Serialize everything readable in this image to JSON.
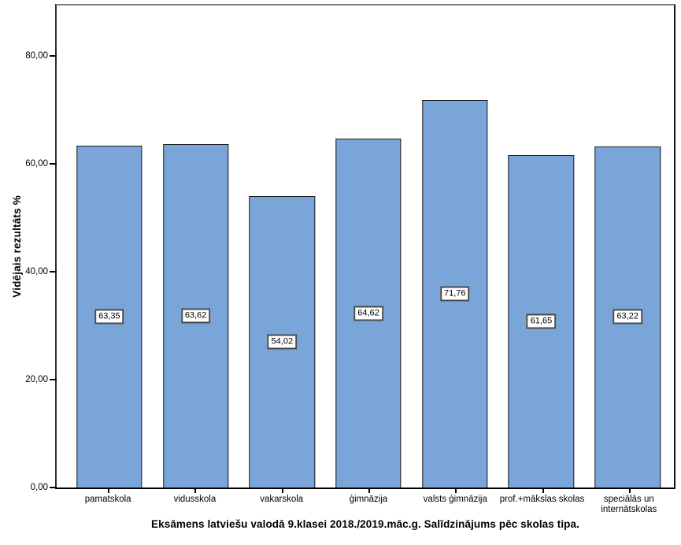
{
  "chart_data": {
    "type": "bar",
    "categories": [
      "pamatskola",
      "vidusskola",
      "vakarskola",
      "ģimnāzija",
      "valsts ģimnāzija",
      "prof.+mākslas skolas",
      "speciālās un\ninternātskolas"
    ],
    "values": [
      63.35,
      63.62,
      54.02,
      64.62,
      71.76,
      61.65,
      63.22
    ],
    "value_labels": [
      "63,35",
      "63,62",
      "54,02",
      "64,62",
      "71,76",
      "61,65",
      "63,22"
    ],
    "title": "Eksāmens latviešu valodā 9.klasei 2018./2019.māc.g. Salīdzinājums pēc skolas tipa.",
    "xlabel": "",
    "ylabel": "Vidējais rezultāts %",
    "ylim": [
      0,
      89.3
    ],
    "yticks": [
      0,
      20,
      40,
      60,
      80
    ],
    "ytick_labels": [
      "0,00",
      "20,00",
      "40,00",
      "60,00",
      "80,00"
    ],
    "grid": false,
    "legend": "none",
    "title_position": "bottom",
    "value_label_position": "bar-center",
    "bar_color": "#7AA5D8",
    "bar_border_color": "#1b1b1b"
  }
}
